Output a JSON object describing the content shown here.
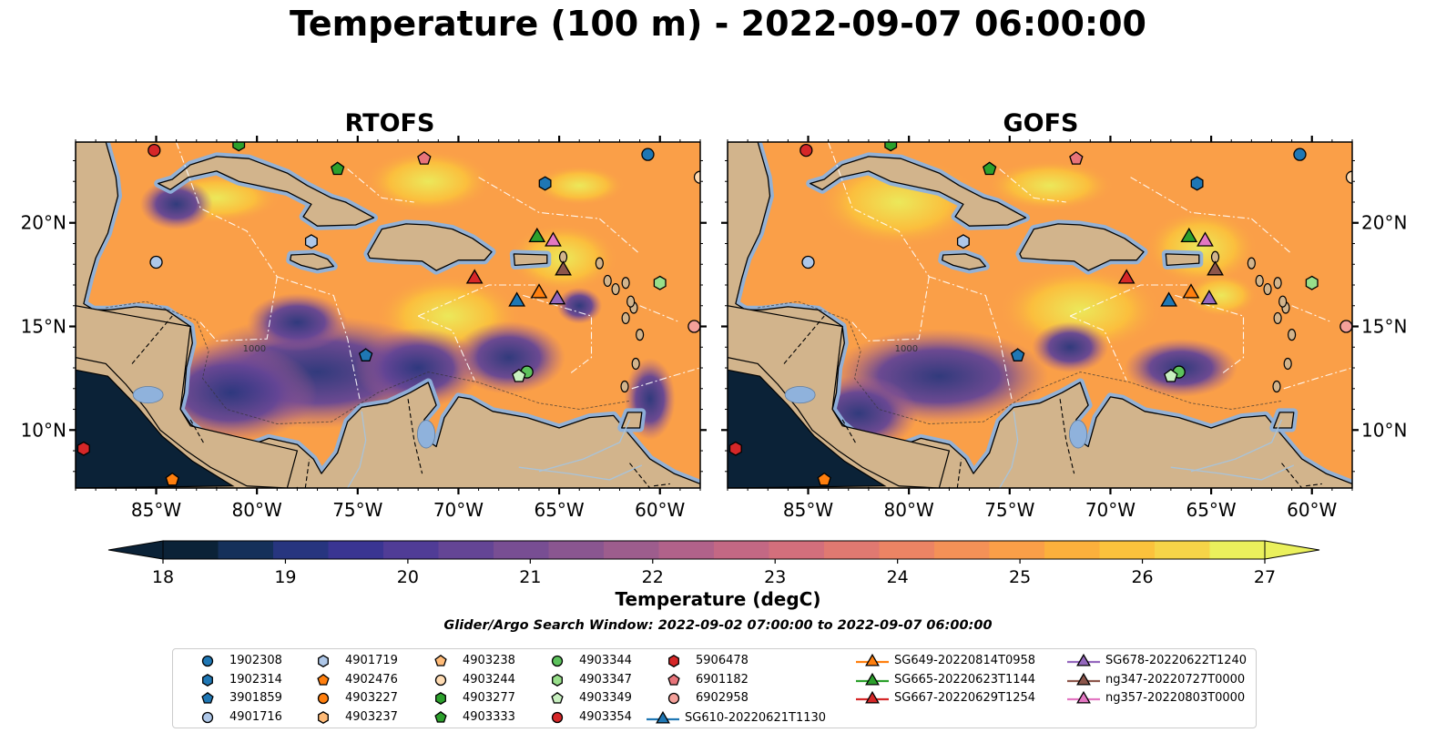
{
  "title": "Temperature (100 m) - 2022-09-07 06:00:00",
  "panels": [
    {
      "title": "RTOFS"
    },
    {
      "title": "GOFS"
    }
  ],
  "map_axes": {
    "x_ticks": [
      "85°W",
      "80°W",
      "75°W",
      "70°W",
      "65°W",
      "60°W"
    ],
    "y_ticks": [
      "20°N",
      "15°N",
      "10°N"
    ],
    "lon_range": [
      -89,
      -58
    ],
    "lat_range": [
      7.2,
      23.9
    ],
    "bathymetry_contour_label": "1000"
  },
  "colorbar": {
    "label": "Temperature (degC)",
    "ticks": [
      "18",
      "19",
      "20",
      "21",
      "22",
      "23",
      "24",
      "25",
      "26",
      "27"
    ],
    "range": [
      18,
      27
    ],
    "extend": "both",
    "colors": [
      "#0b2237",
      "#15305a",
      "#27357f",
      "#3a3592",
      "#503c96",
      "#644595",
      "#784e93",
      "#8a5690",
      "#9d5d8d",
      "#b1628a",
      "#c36884",
      "#d36f7c",
      "#e07971",
      "#ec8464",
      "#f49157",
      "#fa9f48",
      "#fcb03c",
      "#fbc23c",
      "#f6d448",
      "#eaf05c"
    ]
  },
  "search_window": "Glider/Argo Search Window: 2022-09-02 07:00:00 to 2022-09-07 06:00:00",
  "legend": {
    "argo": [
      {
        "label": "1902308",
        "marker": "circle",
        "color": "#1f77b4"
      },
      {
        "label": "1902314",
        "marker": "hexagon",
        "color": "#1f77b4"
      },
      {
        "label": "3901859",
        "marker": "pentagon",
        "color": "#1f77b4"
      },
      {
        "label": "4901716",
        "marker": "circle",
        "color": "#aec7e8"
      },
      {
        "label": "4901719",
        "marker": "hexagon",
        "color": "#aec7e8"
      },
      {
        "label": "4902476",
        "marker": "pentagon",
        "color": "#ff7f0e"
      },
      {
        "label": "4903227",
        "marker": "circle",
        "color": "#ff7f0e"
      },
      {
        "label": "4903237",
        "marker": "hexagon",
        "color": "#ffbb78"
      },
      {
        "label": "4903238",
        "marker": "pentagon",
        "color": "#ffbb78"
      },
      {
        "label": "4903244",
        "marker": "circle",
        "color": "#ffdcb4"
      },
      {
        "label": "4903277",
        "marker": "hexagon",
        "color": "#2ca02c"
      },
      {
        "label": "4903333",
        "marker": "pentagon",
        "color": "#2ca02c"
      },
      {
        "label": "4903344",
        "marker": "circle",
        "color": "#5cc25c"
      },
      {
        "label": "4903347",
        "marker": "hexagon",
        "color": "#98df8a"
      },
      {
        "label": "4903349",
        "marker": "pentagon",
        "color": "#c8f0c0"
      },
      {
        "label": "4903354",
        "marker": "circle",
        "color": "#d62728"
      },
      {
        "label": "5906478",
        "marker": "hexagon",
        "color": "#d62728"
      },
      {
        "label": "6901182",
        "marker": "pentagon",
        "color": "#e8747a"
      },
      {
        "label": "6902958",
        "marker": "circle",
        "color": "#f4a09a"
      }
    ],
    "gliders": [
      {
        "label": "SG610-20220621T1130",
        "color": "#1f77b4"
      },
      {
        "label": "SG649-20220814T0958",
        "color": "#ff7f0e"
      },
      {
        "label": "SG665-20220623T1144",
        "color": "#2ca02c"
      },
      {
        "label": "SG667-20220629T1254",
        "color": "#d62728"
      },
      {
        "label": "SG678-20220622T1240",
        "color": "#9467bd"
      },
      {
        "label": "ng347-20220727T0000",
        "color": "#8c564b"
      },
      {
        "label": "ng357-20220803T0000",
        "color": "#e377c2"
      }
    ]
  },
  "colors": {
    "land": "#d2b48c",
    "shelf": "#8fb2dc",
    "pacific": "#0b2237",
    "rivers": "#a9c3d9"
  }
}
